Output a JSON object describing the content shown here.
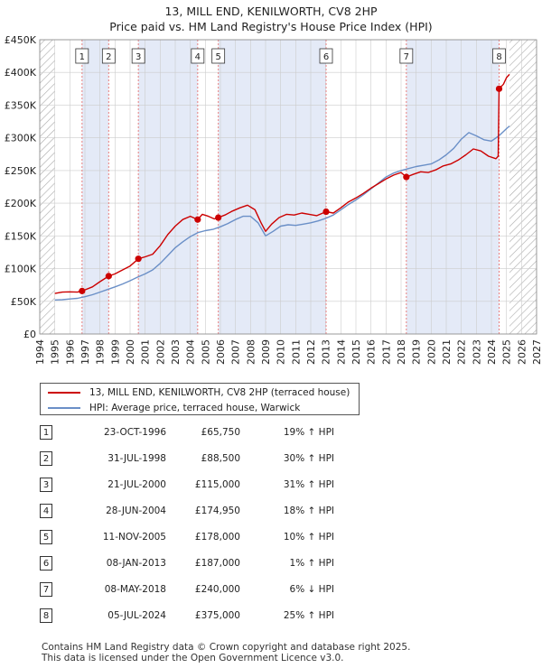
{
  "header": {
    "title": "13, MILL END, KENILWORTH, CV8 2HP",
    "subtitle": "Price paid vs. HM Land Registry's House Price Index (HPI)"
  },
  "colors": {
    "property": "#cc0000",
    "hpi": "#6a8fc7",
    "shade": "#e4eaf7",
    "grid": "#cccccc",
    "sale_line": "#e87f7f",
    "hatch": "#aaaaaa"
  },
  "chart_data": {
    "type": "line",
    "title": "13, MILL END, KENILWORTH, CV8 2HP",
    "xlim": [
      1994,
      2027
    ],
    "ylim": [
      0,
      450000
    ],
    "x_ticks": [
      1994,
      1995,
      1996,
      1997,
      1998,
      1999,
      2000,
      2001,
      2002,
      2003,
      2004,
      2005,
      2006,
      2007,
      2008,
      2009,
      2010,
      2011,
      2012,
      2013,
      2014,
      2015,
      2016,
      2017,
      2018,
      2019,
      2020,
      2021,
      2022,
      2023,
      2024,
      2025,
      2026,
      2027
    ],
    "y_ticks": [
      0,
      50000,
      100000,
      150000,
      200000,
      250000,
      300000,
      350000,
      400000,
      450000
    ],
    "y_tick_labels": [
      "£0",
      "£50K",
      "£100K",
      "£150K",
      "£200K",
      "£250K",
      "£300K",
      "£350K",
      "£400K",
      "£450K"
    ],
    "data_start": 1995.0,
    "data_end": 2025.2,
    "series": [
      {
        "name": "13, MILL END, KENILWORTH, CV8 2HP (terraced house)",
        "points": [
          [
            1995.0,
            62000
          ],
          [
            1995.5,
            64000
          ],
          [
            1996.0,
            64500
          ],
          [
            1996.5,
            64000
          ],
          [
            1996.81,
            65750
          ],
          [
            1997.5,
            72000
          ],
          [
            1998.0,
            80000
          ],
          [
            1998.58,
            88500
          ],
          [
            1999.0,
            92000
          ],
          [
            1999.5,
            98000
          ],
          [
            2000.0,
            104000
          ],
          [
            2000.55,
            115000
          ],
          [
            2001.0,
            118000
          ],
          [
            2001.5,
            122000
          ],
          [
            2002.0,
            135000
          ],
          [
            2002.5,
            152000
          ],
          [
            2003.0,
            165000
          ],
          [
            2003.5,
            175000
          ],
          [
            2004.0,
            180000
          ],
          [
            2004.49,
            174950
          ],
          [
            2004.8,
            183000
          ],
          [
            2005.2,
            180000
          ],
          [
            2005.6,
            176000
          ],
          [
            2005.86,
            178000
          ],
          [
            2006.3,
            182000
          ],
          [
            2006.8,
            188000
          ],
          [
            2007.3,
            193000
          ],
          [
            2007.8,
            197000
          ],
          [
            2008.3,
            190000
          ],
          [
            2008.7,
            170000
          ],
          [
            2009.0,
            157000
          ],
          [
            2009.4,
            168000
          ],
          [
            2009.9,
            178000
          ],
          [
            2010.4,
            183000
          ],
          [
            2010.9,
            182000
          ],
          [
            2011.4,
            185000
          ],
          [
            2011.9,
            183000
          ],
          [
            2012.4,
            181000
          ],
          [
            2013.02,
            187000
          ],
          [
            2013.5,
            185000
          ],
          [
            2014.0,
            193000
          ],
          [
            2014.5,
            202000
          ],
          [
            2015.0,
            208000
          ],
          [
            2015.5,
            215000
          ],
          [
            2016.0,
            223000
          ],
          [
            2016.5,
            230000
          ],
          [
            2017.0,
            237000
          ],
          [
            2017.5,
            243000
          ],
          [
            2018.0,
            247000
          ],
          [
            2018.35,
            240000
          ],
          [
            2018.8,
            244000
          ],
          [
            2019.3,
            248000
          ],
          [
            2019.8,
            247000
          ],
          [
            2020.3,
            251000
          ],
          [
            2020.8,
            257000
          ],
          [
            2021.3,
            260000
          ],
          [
            2021.8,
            266000
          ],
          [
            2022.3,
            274000
          ],
          [
            2022.8,
            283000
          ],
          [
            2023.3,
            280000
          ],
          [
            2023.8,
            272000
          ],
          [
            2024.3,
            268000
          ],
          [
            2024.45,
            272000
          ],
          [
            2024.51,
            375000
          ],
          [
            2024.8,
            382000
          ],
          [
            2025.0,
            392000
          ],
          [
            2025.2,
            397000
          ]
        ]
      },
      {
        "name": "HPI: Average price, terraced house, Warwick",
        "points": [
          [
            1995.0,
            52000
          ],
          [
            1995.5,
            52500
          ],
          [
            1996.0,
            53500
          ],
          [
            1996.5,
            54500
          ],
          [
            1997.0,
            57000
          ],
          [
            1997.5,
            60000
          ],
          [
            1998.0,
            64000
          ],
          [
            1998.5,
            68000
          ],
          [
            1999.0,
            72000
          ],
          [
            1999.5,
            76500
          ],
          [
            2000.0,
            81500
          ],
          [
            2000.5,
            87000
          ],
          [
            2001.0,
            92000
          ],
          [
            2001.5,
            98000
          ],
          [
            2002.0,
            108000
          ],
          [
            2002.5,
            120000
          ],
          [
            2003.0,
            132000
          ],
          [
            2003.5,
            141000
          ],
          [
            2004.0,
            149000
          ],
          [
            2004.5,
            155000
          ],
          [
            2005.0,
            158000
          ],
          [
            2005.5,
            160000
          ],
          [
            2006.0,
            164000
          ],
          [
            2006.5,
            169000
          ],
          [
            2007.0,
            175000
          ],
          [
            2007.5,
            180000
          ],
          [
            2008.0,
            180000
          ],
          [
            2008.5,
            170000
          ],
          [
            2009.0,
            150000
          ],
          [
            2009.5,
            157000
          ],
          [
            2010.0,
            165000
          ],
          [
            2010.5,
            167000
          ],
          [
            2011.0,
            166000
          ],
          [
            2011.5,
            168000
          ],
          [
            2012.0,
            170000
          ],
          [
            2012.5,
            173000
          ],
          [
            2013.0,
            177000
          ],
          [
            2013.5,
            182000
          ],
          [
            2014.0,
            190000
          ],
          [
            2014.5,
            198000
          ],
          [
            2015.0,
            205000
          ],
          [
            2015.5,
            213000
          ],
          [
            2016.0,
            222000
          ],
          [
            2016.5,
            231000
          ],
          [
            2017.0,
            240000
          ],
          [
            2017.5,
            246000
          ],
          [
            2018.0,
            250000
          ],
          [
            2018.5,
            253000
          ],
          [
            2019.0,
            256000
          ],
          [
            2019.5,
            258000
          ],
          [
            2020.0,
            260000
          ],
          [
            2020.5,
            266000
          ],
          [
            2021.0,
            274000
          ],
          [
            2021.5,
            284000
          ],
          [
            2022.0,
            298000
          ],
          [
            2022.5,
            308000
          ],
          [
            2023.0,
            303000
          ],
          [
            2023.5,
            297000
          ],
          [
            2024.0,
            295000
          ],
          [
            2024.5,
            303000
          ],
          [
            2025.0,
            314000
          ],
          [
            2025.2,
            318000
          ]
        ]
      }
    ],
    "sales": [
      {
        "id": "1",
        "date": "23-OCT-1996",
        "year": 1996.81,
        "price": 65750,
        "price_label": "£65,750",
        "hpi": "19% ↑ HPI"
      },
      {
        "id": "2",
        "date": "31-JUL-1998",
        "year": 1998.58,
        "price": 88500,
        "price_label": "£88,500",
        "hpi": "30% ↑ HPI"
      },
      {
        "id": "3",
        "date": "21-JUL-2000",
        "year": 2000.55,
        "price": 115000,
        "price_label": "£115,000",
        "hpi": "31% ↑ HPI"
      },
      {
        "id": "4",
        "date": "28-JUN-2004",
        "year": 2004.49,
        "price": 174950,
        "price_label": "£174,950",
        "hpi": "18% ↑ HPI"
      },
      {
        "id": "5",
        "date": "11-NOV-2005",
        "year": 2005.86,
        "price": 178000,
        "price_label": "£178,000",
        "hpi": "10% ↑ HPI"
      },
      {
        "id": "6",
        "date": "08-JAN-2013",
        "year": 2013.02,
        "price": 187000,
        "price_label": "£187,000",
        "hpi": "1% ↑ HPI"
      },
      {
        "id": "7",
        "date": "08-MAY-2018",
        "year": 2018.35,
        "price": 240000,
        "price_label": "£240,000",
        "hpi": "6% ↓ HPI"
      },
      {
        "id": "8",
        "date": "05-JUL-2024",
        "year": 2024.51,
        "price": 375000,
        "price_label": "£375,000",
        "hpi": "25% ↑ HPI"
      }
    ],
    "shaded_spans": [
      [
        1996.81,
        1998.58
      ],
      [
        2000.55,
        2004.49
      ],
      [
        2005.86,
        2013.02
      ],
      [
        2018.35,
        2024.51
      ]
    ]
  },
  "footer": {
    "line1": "Contains HM Land Registry data © Crown copyright and database right 2025.",
    "line2": "This data is licensed under the Open Government Licence v3.0."
  }
}
